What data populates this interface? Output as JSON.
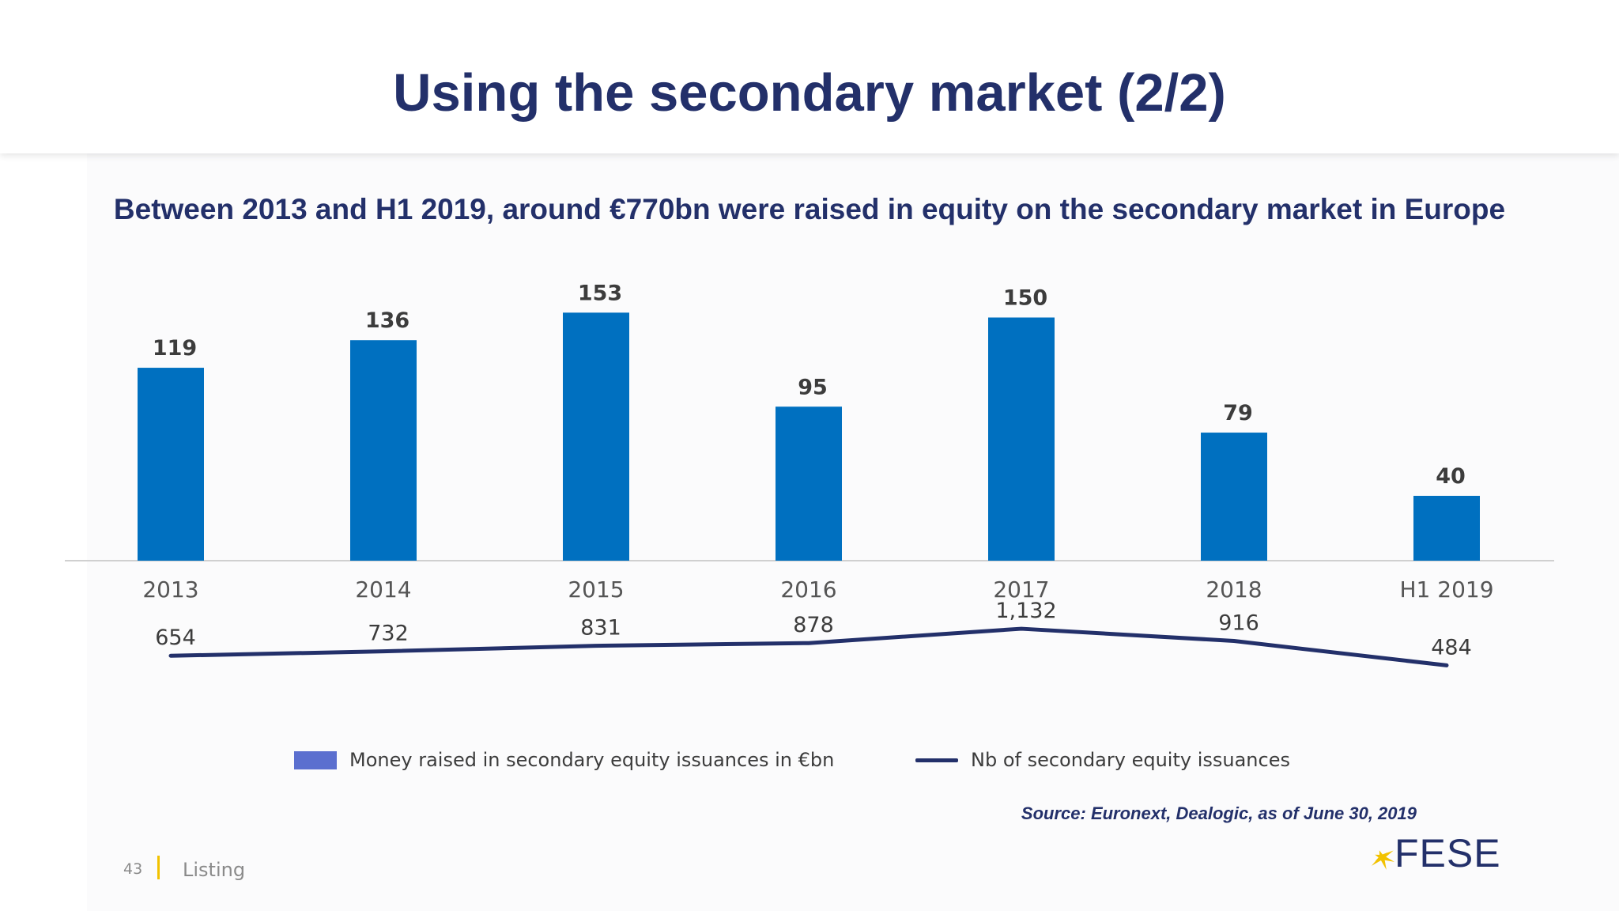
{
  "header": {
    "title": "Using the secondary market (2/2)"
  },
  "subtitle": "Between 2013 and H1 2019, around €770bn were raised in equity on the secondary market in Europe",
  "chart_data": {
    "type": "bar+line",
    "title": "",
    "categories": [
      "2013",
      "2014",
      "2015",
      "2016",
      "2017",
      "2018",
      "H1 2019"
    ],
    "series": [
      {
        "name": "Money raised in secondary equity issuances in €bn",
        "type": "bar",
        "values": [
          119,
          136,
          153,
          95,
          150,
          79,
          40
        ],
        "labels": [
          "119",
          "136",
          "153",
          "95",
          "150",
          "79",
          "40"
        ],
        "color": "#0070c0"
      },
      {
        "name": "Nb of secondary equity issuances",
        "type": "line",
        "values": [
          654,
          732,
          831,
          878,
          1132,
          916,
          484
        ],
        "labels": [
          "654",
          "732",
          "831",
          "878",
          "1,132",
          "916",
          "484"
        ],
        "color": "#23306a"
      }
    ],
    "legend": "bottom",
    "grid": false
  },
  "legend": {
    "bar_swatch_color": "#5b6fcf",
    "line_swatch_color": "#23306a"
  },
  "source": "Source: Euronext, Dealogic, as of June 30, 2019",
  "footer": {
    "page_number": "43",
    "section": "Listing"
  },
  "logo": {
    "text": "FESE",
    "star_color": "#f2c200"
  }
}
